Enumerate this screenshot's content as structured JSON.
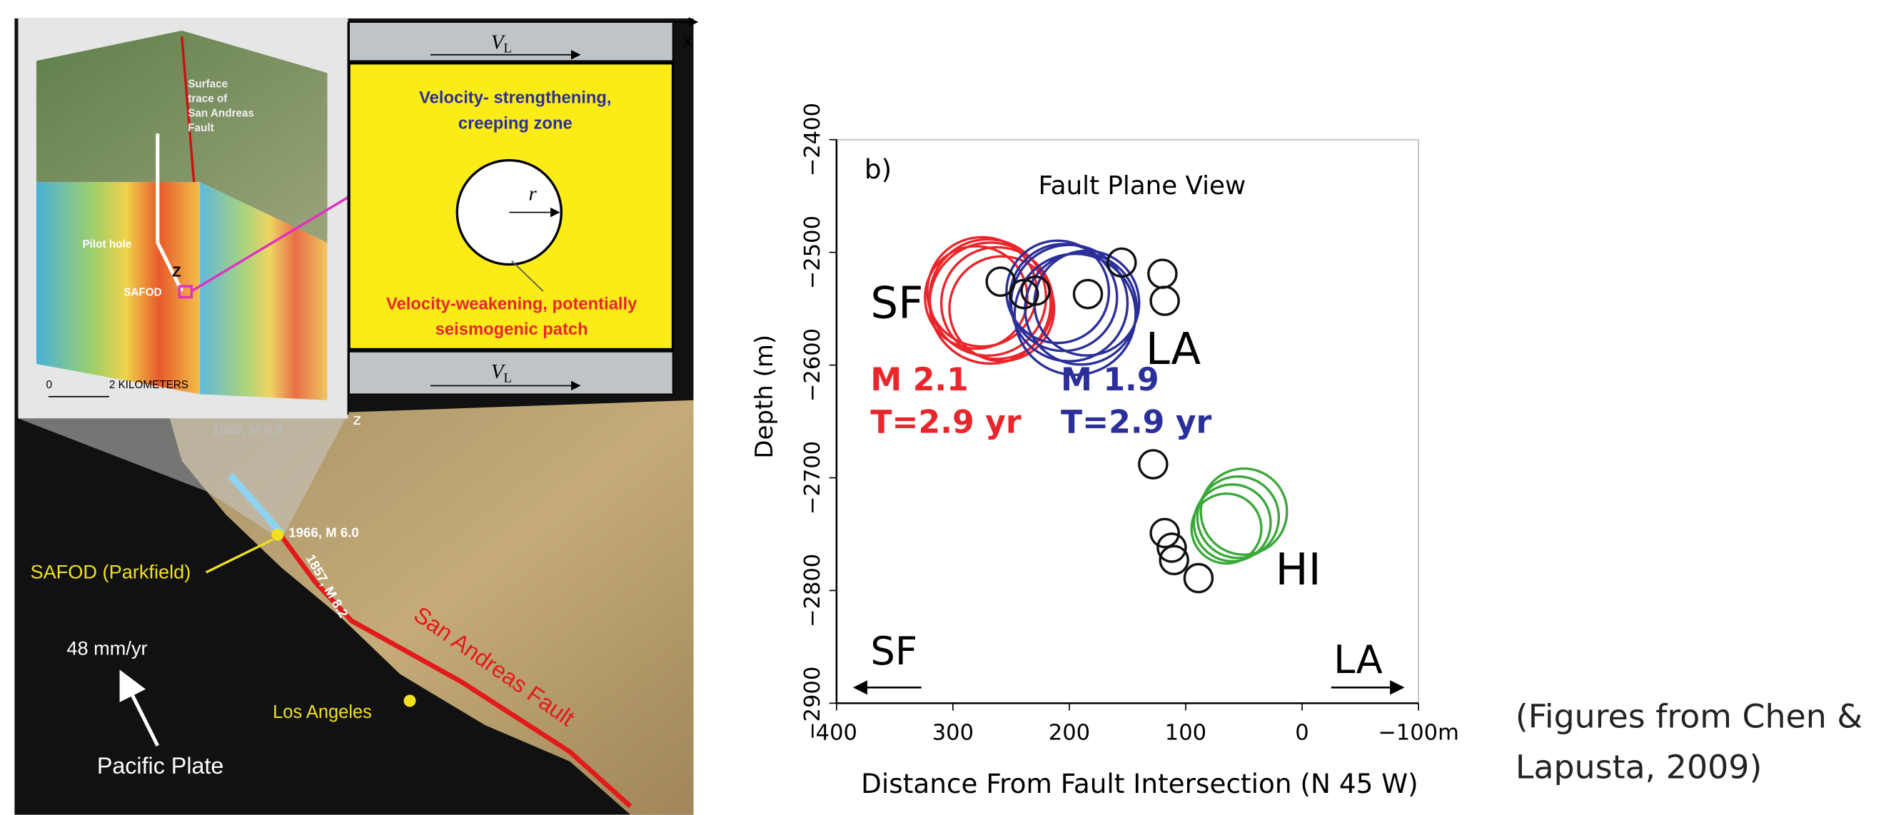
{
  "chart_data": {
    "type": "bubble",
    "panel_label": "b)",
    "title": "Fault Plane View",
    "x_label": "Distance From Fault Intersection (N 45 W)",
    "y_label": "Depth (m)",
    "xlim": [
      400,
      -100
    ],
    "xticks": [
      400,
      300,
      200,
      100,
      0,
      {
        "value": -100,
        "label": "−100m"
      }
    ],
    "ylim": [
      -2400,
      -2900
    ],
    "yticks": [
      {
        "value": -2400,
        "label": "−2400"
      },
      {
        "value": -2500,
        "label": "−2500"
      },
      {
        "value": -2600,
        "label": "−2600"
      },
      {
        "value": -2700,
        "label": "−2700"
      },
      {
        "value": -2800,
        "label": "−2800"
      },
      {
        "value": -2900,
        "label": "−2900"
      }
    ],
    "series": [
      {
        "name": "SF",
        "color": "#e8262b",
        "x": [
          270,
          262,
          275,
          258,
          268,
          280
        ],
        "values": [
          -2540,
          -2545,
          -2535,
          -2550,
          -2545,
          -2540
        ],
        "sizes": [
          50,
          48,
          47,
          45,
          52,
          44
        ]
      },
      {
        "name": "LA",
        "color": "#2b2f9a",
        "x": [
          200,
          190,
          205,
          195,
          185,
          210
        ],
        "values": [
          -2545,
          -2550,
          -2540,
          -2555,
          -2545,
          -2535
        ],
        "sizes": [
          50,
          48,
          46,
          52,
          45,
          44
        ]
      },
      {
        "name": "HI",
        "color": "#3aa83a",
        "x": [
          55,
          60,
          50,
          65
        ],
        "values": [
          -2735,
          -2740,
          -2730,
          -2745
        ],
        "sizes": [
          35,
          33,
          37,
          30
        ]
      },
      {
        "color": "#111111",
        "x": [
          259,
          239,
          229,
          184,
          155,
          120,
          118,
          128,
          118,
          112,
          110,
          89
        ],
        "values": [
          -2526,
          -2537,
          -2534,
          -2537,
          -2509,
          -2519,
          -2543,
          -2688,
          -2749,
          -2762,
          -2773,
          -2789
        ],
        "sizes": [
          12,
          12,
          12,
          12,
          12,
          12,
          12,
          12,
          12,
          12,
          12,
          12
        ]
      }
    ],
    "annotations": [
      {
        "text": "M 2.1",
        "color": "#e8262b"
      },
      {
        "text": "T=2.9 yr",
        "color": "#e8262b"
      },
      {
        "text": "M 1.9",
        "color": "#2b2f9a"
      },
      {
        "text": "T=2.9 yr",
        "color": "#2b2f9a"
      }
    ],
    "direction_labels": [
      "SF",
      "LA"
    ]
  },
  "left_figure": {
    "axis_x": "x",
    "axis_z": "z",
    "axis_z_inset": "Z",
    "velocity_top": {
      "symbol": "V",
      "subscript": "L"
    },
    "velocity_bottom": {
      "symbol": "V",
      "subscript": "L"
    },
    "creeping_zone": [
      "Velocity- strengthening,",
      "creeping zone"
    ],
    "radius": "r",
    "patch": [
      "Velocity-weakening, potentially",
      "seismogenic patch"
    ],
    "inset": {
      "surface_trace": [
        "Surface",
        "trace of",
        "San Andreas",
        "Fault"
      ],
      "pilot_hole": "Pilot hole",
      "safod": "SAFOD",
      "scale_zero": "0",
      "scale": "2 KILOMETERS"
    },
    "map": {
      "event_1989": "1989, M 6.9",
      "event_1966": "1966, M 6.0",
      "event_1857": "1857, M 8.2",
      "safod": "SAFOD (Parkfield)",
      "fault": "San Andreas Fault",
      "city": "Los Angeles",
      "rate": "48 mm/yr",
      "plate": "Pacific Plate"
    }
  },
  "caption": [
    "(Figures from Chen &",
    "Lapusta, 2009)"
  ]
}
